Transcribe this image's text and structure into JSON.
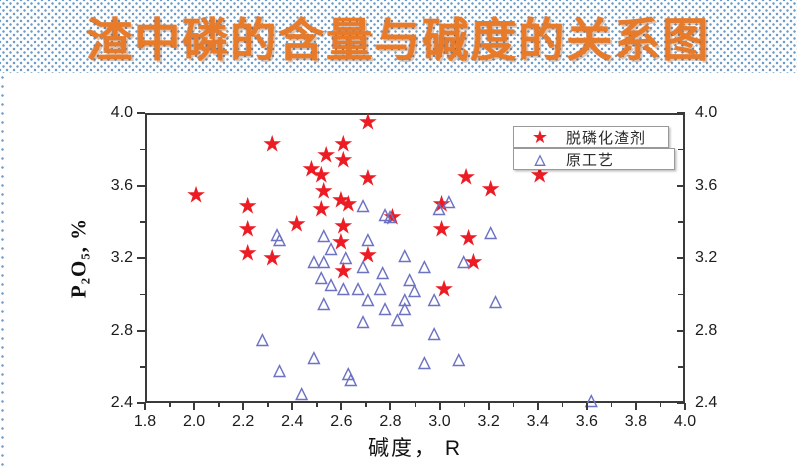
{
  "slide": {
    "title": "渣中磷的含量与碱度的关系图"
  },
  "icons": {
    "star": "★",
    "triangle": "△"
  },
  "colors": {
    "title": "#e87b2a",
    "star": "#ed1c24",
    "triangle": "#6d72c3",
    "axis": "#3a3a3a",
    "dot_pattern": "#6f9cc6"
  },
  "chart_data": {
    "type": "scatter",
    "title": "",
    "xlabel": "碱度， R",
    "ylabel": "P₂O₅,  %",
    "xlim": [
      1.8,
      4.0
    ],
    "ylim": [
      2.4,
      4.0
    ],
    "x_major_ticks": [
      1.8,
      2.0,
      2.2,
      2.4,
      2.6,
      2.8,
      3.0,
      3.2,
      3.4,
      3.6,
      3.8,
      4.0
    ],
    "x_minor_ticks": [
      1.9,
      2.1,
      2.3,
      2.5,
      2.7,
      2.9,
      3.1,
      3.3,
      3.5,
      3.7,
      3.9
    ],
    "y_major_ticks": [
      2.4,
      2.8,
      3.2,
      3.6,
      4.0
    ],
    "y_minor_ticks": [
      2.6,
      3.0,
      3.4,
      3.8
    ],
    "grid": false,
    "legend_position": "top-right",
    "y_axis_labels_on_both_sides": true,
    "series": [
      {
        "name": "脱磷化渣剂",
        "marker": "star",
        "color": "#ed1c24",
        "points": [
          [
            2.0,
            3.56
          ],
          [
            2.21,
            3.5
          ],
          [
            2.21,
            3.37
          ],
          [
            2.21,
            3.24
          ],
          [
            2.31,
            3.84
          ],
          [
            2.31,
            3.21
          ],
          [
            2.41,
            3.4
          ],
          [
            2.47,
            3.7
          ],
          [
            2.51,
            3.67
          ],
          [
            2.53,
            3.78
          ],
          [
            2.52,
            3.58
          ],
          [
            2.51,
            3.48
          ],
          [
            2.6,
            3.84
          ],
          [
            2.6,
            3.75
          ],
          [
            2.7,
            3.96
          ],
          [
            2.7,
            3.65
          ],
          [
            2.59,
            3.53
          ],
          [
            2.62,
            3.51
          ],
          [
            2.6,
            3.39
          ],
          [
            2.59,
            3.3
          ],
          [
            2.6,
            3.14
          ],
          [
            2.7,
            3.23
          ],
          [
            2.8,
            3.44
          ],
          [
            3.0,
            3.51
          ],
          [
            3.0,
            3.37
          ],
          [
            3.01,
            3.04
          ],
          [
            3.1,
            3.66
          ],
          [
            3.11,
            3.32
          ],
          [
            3.13,
            3.19
          ],
          [
            3.2,
            3.59
          ],
          [
            3.4,
            3.67
          ]
        ]
      },
      {
        "name": "原工艺",
        "marker": "triangle",
        "color": "#6d72c3",
        "points": [
          [
            2.27,
            2.76
          ],
          [
            2.33,
            3.34
          ],
          [
            2.34,
            3.31
          ],
          [
            2.34,
            2.59
          ],
          [
            2.43,
            2.46
          ],
          [
            2.48,
            2.66
          ],
          [
            2.48,
            3.19
          ],
          [
            2.52,
            3.19
          ],
          [
            2.52,
            3.33
          ],
          [
            2.52,
            2.96
          ],
          [
            2.51,
            3.1
          ],
          [
            2.55,
            3.06
          ],
          [
            2.55,
            3.26
          ],
          [
            2.6,
            3.04
          ],
          [
            2.61,
            3.21
          ],
          [
            2.62,
            2.57
          ],
          [
            2.63,
            2.54
          ],
          [
            2.66,
            3.04
          ],
          [
            2.68,
            3.16
          ],
          [
            2.68,
            2.86
          ],
          [
            2.68,
            3.5
          ],
          [
            2.7,
            3.31
          ],
          [
            2.7,
            2.98
          ],
          [
            2.75,
            3.04
          ],
          [
            2.76,
            3.13
          ],
          [
            2.77,
            3.45
          ],
          [
            2.79,
            3.44
          ],
          [
            2.77,
            2.93
          ],
          [
            2.82,
            2.87
          ],
          [
            2.85,
            3.22
          ],
          [
            2.85,
            2.98
          ],
          [
            2.85,
            2.93
          ],
          [
            2.87,
            3.09
          ],
          [
            2.89,
            3.03
          ],
          [
            2.93,
            3.16
          ],
          [
            2.93,
            2.63
          ],
          [
            2.97,
            2.98
          ],
          [
            2.97,
            2.79
          ],
          [
            2.99,
            3.48
          ],
          [
            3.03,
            3.52
          ],
          [
            3.09,
            3.19
          ],
          [
            3.07,
            2.65
          ],
          [
            3.2,
            3.35
          ],
          [
            3.22,
            2.97
          ],
          [
            3.61,
            2.42
          ]
        ]
      }
    ]
  }
}
